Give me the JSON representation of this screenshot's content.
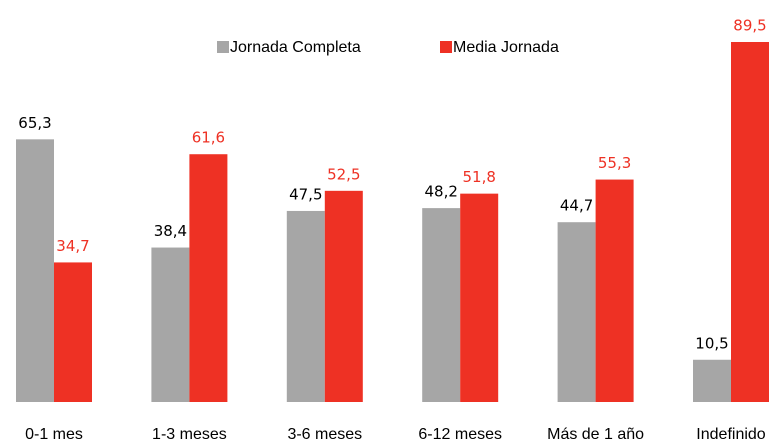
{
  "chart_data": {
    "type": "bar",
    "categories": [
      "0-1 mes",
      "1-3 meses",
      "3-6 meses",
      "6-12 meses",
      "Más de 1 año",
      "Indefinido"
    ],
    "series": [
      {
        "name": "Jornada Completa",
        "color": "#a6a6a6",
        "label_color": "#000000",
        "values": [
          65.3,
          38.4,
          47.5,
          48.2,
          44.7,
          10.5
        ],
        "value_labels": [
          "65,3",
          "38,4",
          "47,5",
          "48,2",
          "44,7",
          "10,5"
        ]
      },
      {
        "name": "Media Jornada",
        "color": "#ee3124",
        "label_color": "#ee3124",
        "values": [
          34.7,
          61.6,
          52.5,
          51.8,
          55.3,
          89.5
        ],
        "value_labels": [
          "34,7",
          "61,6",
          "52,5",
          "51,8",
          "55,3",
          "89,5"
        ]
      }
    ],
    "legend": "top"
  }
}
